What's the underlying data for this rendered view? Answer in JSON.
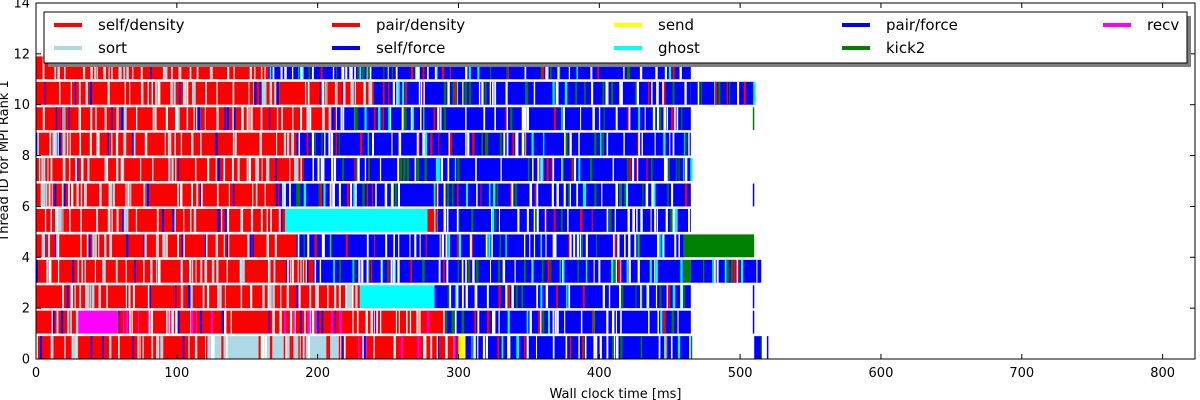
{
  "chart_data": {
    "type": "bar",
    "orientation": "horizontal-timeline",
    "xlabel": "Wall clock time [ms]",
    "ylabel": "Thread ID for MPI Rank 1",
    "xlim": [
      0,
      823
    ],
    "ylim": [
      0,
      14
    ],
    "xticks": [
      0,
      100,
      200,
      300,
      400,
      500,
      600,
      700,
      800
    ],
    "yticks": [
      0,
      2,
      4,
      6,
      8,
      10,
      12,
      14
    ],
    "grid": false,
    "legend_position": "top",
    "legend": [
      {
        "name": "self/density",
        "color": "#ff0000"
      },
      {
        "name": "pair/density",
        "color": "#ff0000"
      },
      {
        "name": "send",
        "color": "#ffff00"
      },
      {
        "name": "pair/force",
        "color": "#0000ff"
      },
      {
        "name": "recv",
        "color": "#ff00ff"
      },
      {
        "name": "sort",
        "color": "#add8e6"
      },
      {
        "name": "self/force",
        "color": "#0000ff"
      },
      {
        "name": "ghost",
        "color": "#00ffff"
      },
      {
        "name": "kick2",
        "color": "#008000"
      }
    ],
    "threads": [
      {
        "id": 0,
        "segments": [
          {
            "task": "self/density",
            "start": 0,
            "end": 120
          },
          {
            "task": "sort",
            "start": 120,
            "end": 215
          },
          {
            "task": "pair/density",
            "start": 215,
            "end": 300
          },
          {
            "task": "send",
            "start": 300,
            "end": 305
          },
          {
            "task": "pair/force",
            "start": 305,
            "end": 465
          },
          {
            "task": "kick2",
            "start": 465,
            "end": 466
          },
          {
            "task": "pair/force",
            "start": 510,
            "end": 515
          }
        ]
      },
      {
        "id": 1,
        "segments": [
          {
            "task": "self/density",
            "start": 0,
            "end": 30
          },
          {
            "task": "recv",
            "start": 30,
            "end": 58
          },
          {
            "task": "pair/density",
            "start": 58,
            "end": 290
          },
          {
            "task": "pair/force",
            "start": 290,
            "end": 465
          }
        ]
      },
      {
        "id": 2,
        "segments": [
          {
            "task": "self/density",
            "start": 0,
            "end": 230
          },
          {
            "task": "ghost",
            "start": 230,
            "end": 283
          },
          {
            "task": "pair/force",
            "start": 283,
            "end": 465
          }
        ]
      },
      {
        "id": 3,
        "segments": [
          {
            "task": "self/density",
            "start": 0,
            "end": 197
          },
          {
            "task": "pair/force",
            "start": 197,
            "end": 460
          },
          {
            "task": "kick2",
            "start": 460,
            "end": 465
          },
          {
            "task": "pair/force",
            "start": 465,
            "end": 515
          }
        ]
      },
      {
        "id": 4,
        "segments": [
          {
            "task": "self/density",
            "start": 0,
            "end": 185
          },
          {
            "task": "pair/force",
            "start": 185,
            "end": 460
          },
          {
            "task": "kick2",
            "start": 460,
            "end": 510
          }
        ]
      },
      {
        "id": 5,
        "segments": [
          {
            "task": "self/density",
            "start": 0,
            "end": 177
          },
          {
            "task": "ghost",
            "start": 177,
            "end": 278
          },
          {
            "task": "pair/density",
            "start": 278,
            "end": 283
          },
          {
            "task": "pair/force",
            "start": 283,
            "end": 465
          }
        ]
      },
      {
        "id": 6,
        "segments": [
          {
            "task": "self/density",
            "start": 0,
            "end": 175
          },
          {
            "task": "pair/force",
            "start": 175,
            "end": 465
          }
        ]
      },
      {
        "id": 7,
        "segments": [
          {
            "task": "self/density",
            "start": 0,
            "end": 190
          },
          {
            "task": "pair/force",
            "start": 190,
            "end": 465
          }
        ]
      },
      {
        "id": 8,
        "segments": [
          {
            "task": "self/density",
            "start": 0,
            "end": 185
          },
          {
            "task": "pair/force",
            "start": 185,
            "end": 465
          }
        ]
      },
      {
        "id": 9,
        "segments": [
          {
            "task": "self/density",
            "start": 0,
            "end": 210
          },
          {
            "task": "pair/force",
            "start": 210,
            "end": 465
          }
        ]
      },
      {
        "id": 10,
        "segments": [
          {
            "task": "self/density",
            "start": 0,
            "end": 240
          },
          {
            "task": "pair/force",
            "start": 240,
            "end": 465
          },
          {
            "task": "pair/force",
            "start": 465,
            "end": 510
          }
        ]
      },
      {
        "id": 11,
        "segments": [
          {
            "task": "self/density",
            "start": 0,
            "end": 165
          },
          {
            "task": "pair/force",
            "start": 165,
            "end": 465
          }
        ]
      }
    ],
    "isolated_ticks": [
      {
        "thread": 0,
        "time": 519,
        "task": "pair/force"
      },
      {
        "thread": 1,
        "time": 509,
        "task": "pair/force"
      },
      {
        "thread": 2,
        "time": 509,
        "task": "pair/force"
      },
      {
        "thread": 6,
        "time": 509,
        "task": "pair/force"
      },
      {
        "thread": 9,
        "time": 509,
        "task": "kick2"
      }
    ]
  }
}
